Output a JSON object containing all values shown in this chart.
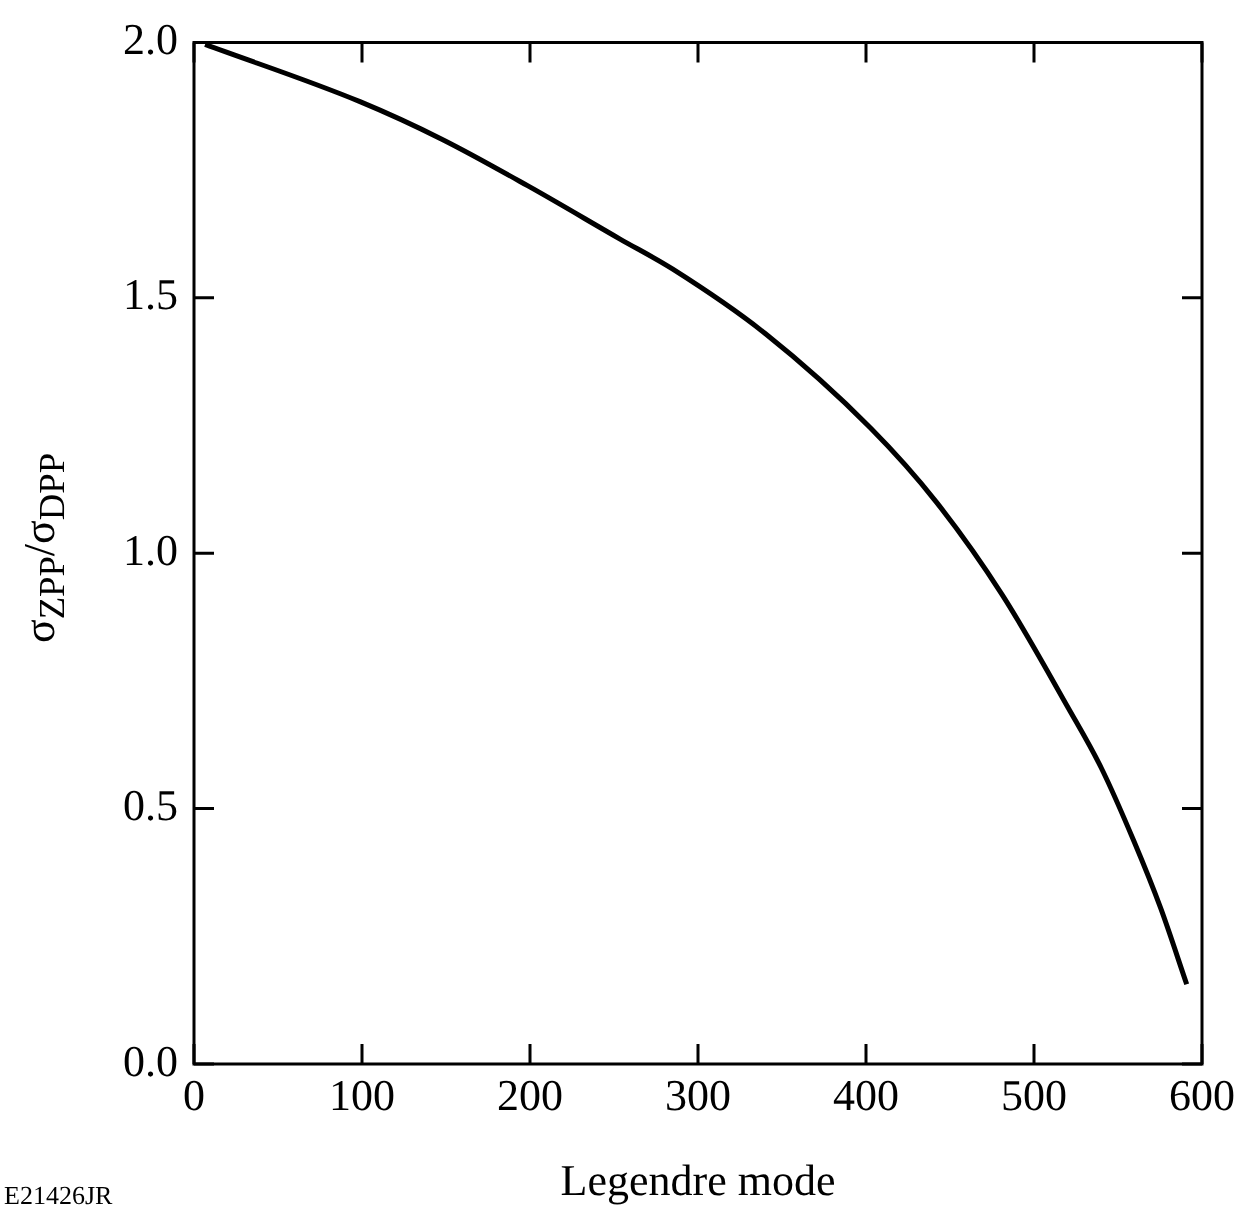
{
  "chart_data": {
    "type": "line",
    "xlabel": "Legendre mode",
    "ylabel": "σ$_{ZPP}$/σ$_{DPP}$",
    "x": [
      6.6,
      98.8,
      147.8,
      198.8,
      253.6,
      285,
      340,
      402.7,
      441.9,
      481.2,
      520.4,
      540,
      559.5,
      575.3,
      590.9
    ],
    "series": [
      {
        "color": "#000000",
        "values": [
          1.996,
          1.884,
          1.81,
          1.719,
          1.615,
          1.556,
          1.43,
          1.245,
          1.1,
          0.918,
          0.697,
          0.58,
          0.436,
          0.306,
          0.156
        ]
      }
    ],
    "xlim": [
      0,
      600
    ],
    "xticks": [
      0,
      100,
      200,
      300,
      400,
      500,
      600
    ],
    "ylim": [
      0,
      2
    ],
    "yticks": [
      {
        "value": 0,
        "label": "0.0"
      },
      {
        "value": 0.5,
        "label": "0.5"
      },
      {
        "value": 1,
        "label": "1.0"
      },
      {
        "value": 1.5,
        "label": "1.5"
      },
      {
        "value": 2,
        "label": "2.0"
      }
    ],
    "grid": false,
    "legend": false,
    "marker": "none",
    "line_style": "solid",
    "annotations": [
      "E21426JR"
    ]
  }
}
